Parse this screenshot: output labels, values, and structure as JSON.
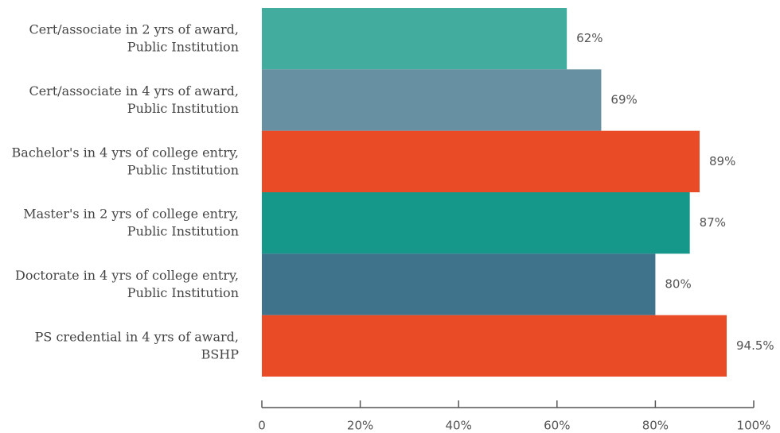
{
  "chart_data": {
    "type": "bar",
    "orientation": "horizontal",
    "categories": [
      [
        "Cert/associate in 2 yrs of award,",
        "Public Institution"
      ],
      [
        "Cert/associate in 4 yrs of award,",
        "Public Institution"
      ],
      [
        "Bachelor's in 4 yrs of college entry,",
        "Public Institution"
      ],
      [
        "Master's in 2 yrs of college entry,",
        "Public Institution"
      ],
      [
        "Doctorate in 4 yrs of college entry,",
        "Public Institution"
      ],
      [
        "PS credential in 4 yrs of award,",
        "BSHP"
      ]
    ],
    "values": [
      62,
      69,
      89,
      87,
      80,
      94.5
    ],
    "value_labels": [
      "62%",
      "69%",
      "89%",
      "87%",
      "80%",
      "94.5%"
    ],
    "colors": [
      "#42ad9f",
      "#6790a2",
      "#e84b25",
      "#15978a",
      "#3f738c",
      "#e84b25"
    ],
    "xlim": [
      0,
      100
    ],
    "xticks": [
      0,
      {
        "value": 20,
        "label": "20%"
      },
      {
        "value": 40,
        "label": "40%"
      },
      {
        "value": 60,
        "label": "60%"
      },
      {
        "value": 80,
        "label": "80%"
      },
      {
        "value": 100,
        "label": "100%"
      }
    ]
  }
}
